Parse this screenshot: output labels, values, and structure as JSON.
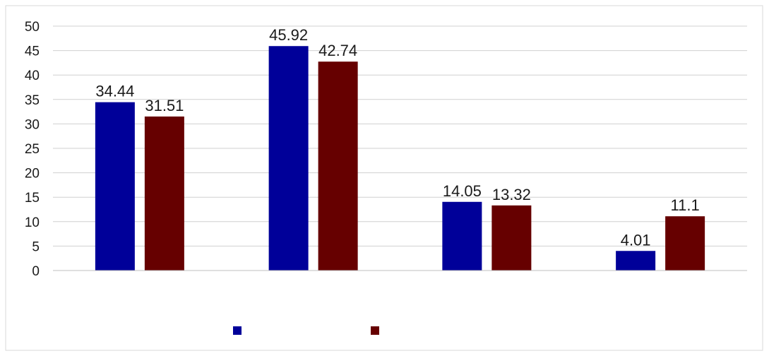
{
  "chart_data": {
    "type": "bar",
    "categories": [
      "",
      "",
      "",
      ""
    ],
    "series": [
      {
        "name": "",
        "color": "#000099",
        "values": [
          34.44,
          45.92,
          14.05,
          4.01
        ]
      },
      {
        "name": "",
        "color": "#660000",
        "values": [
          31.51,
          42.74,
          13.32,
          11.1
        ]
      }
    ],
    "ylim": [
      0,
      50
    ],
    "yticks": [
      0,
      5,
      10,
      15,
      20,
      25,
      30,
      35,
      40,
      45,
      50
    ],
    "grid": true,
    "legend": "bottom"
  }
}
